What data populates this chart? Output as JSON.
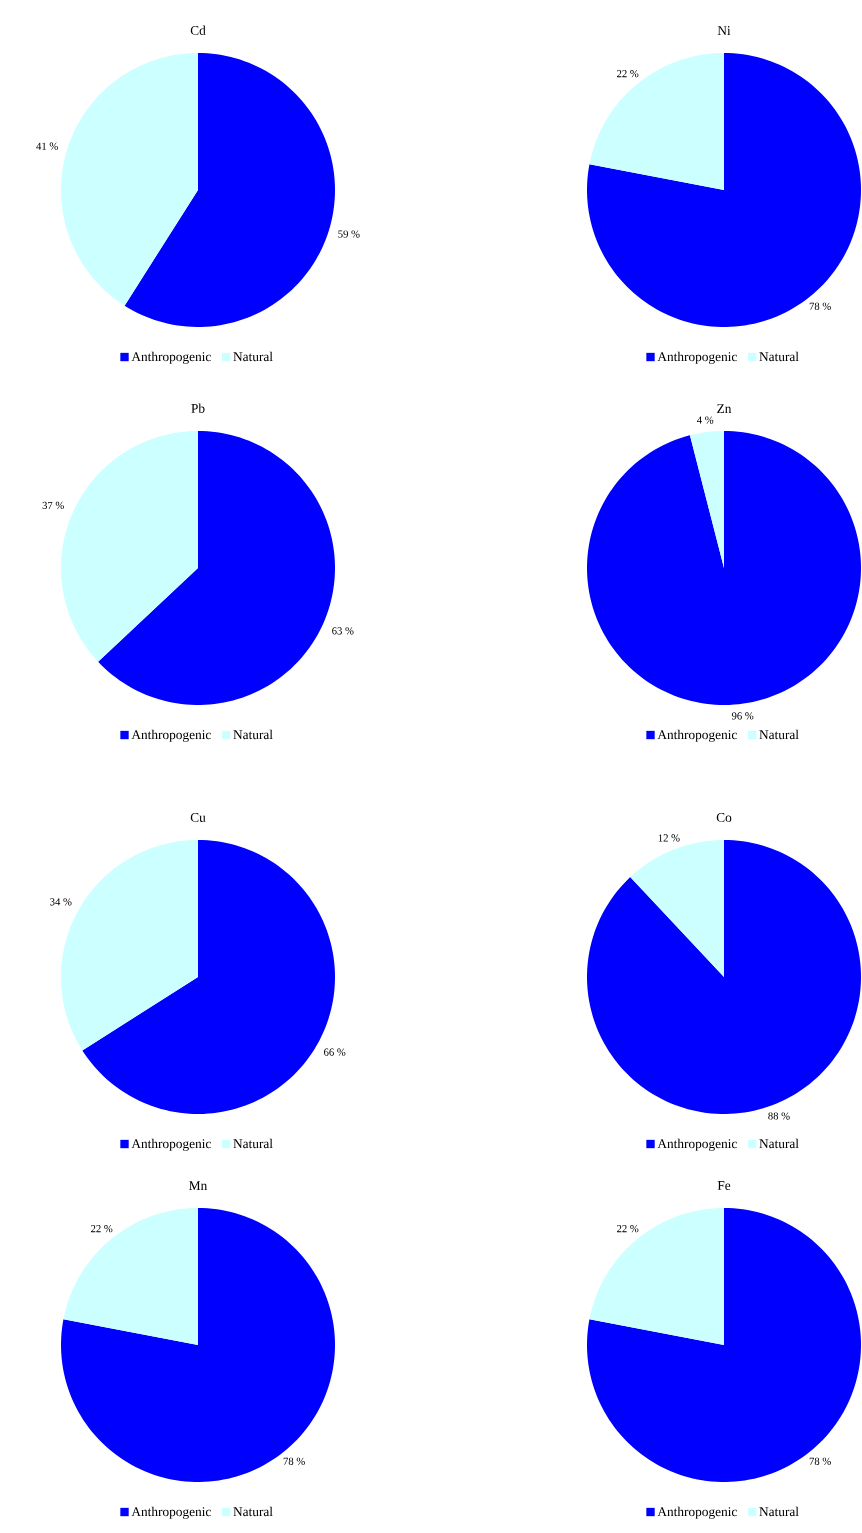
{
  "chart_data": [
    {
      "type": "pie",
      "title": "Cd",
      "categories": [
        "Anthropogenic",
        "Natural"
      ],
      "values": [
        59,
        41
      ],
      "colors": [
        "#0000ff",
        "#ccffff"
      ],
      "value_labels": [
        "59 %",
        "41 %"
      ],
      "legend": "bottom"
    },
    {
      "type": "pie",
      "title": "Ni",
      "categories": [
        "Anthropogenic",
        "Natural"
      ],
      "values": [
        78,
        22
      ],
      "colors": [
        "#0000ff",
        "#ccffff"
      ],
      "value_labels": [
        "78 %",
        "22 %"
      ],
      "legend": "bottom"
    },
    {
      "type": "pie",
      "title": "Pb",
      "categories": [
        "Anthropogenic",
        "Natural"
      ],
      "values": [
        63,
        37
      ],
      "colors": [
        "#0000ff",
        "#ccffff"
      ],
      "value_labels": [
        "63 %",
        "37 %"
      ],
      "legend": "bottom"
    },
    {
      "type": "pie",
      "title": "Zn",
      "categories": [
        "Anthropogenic",
        "Natural"
      ],
      "values": [
        96,
        4
      ],
      "colors": [
        "#0000ff",
        "#ccffff"
      ],
      "value_labels": [
        "96 %",
        "4 %"
      ],
      "legend": "bottom"
    },
    {
      "type": "pie",
      "title": "Cu",
      "categories": [
        "Anthropogenic",
        "Natural"
      ],
      "values": [
        66,
        34
      ],
      "colors": [
        "#0000ff",
        "#ccffff"
      ],
      "value_labels": [
        "66 %",
        "34 %"
      ],
      "legend": "bottom"
    },
    {
      "type": "pie",
      "title": "Co",
      "categories": [
        "Anthropogenic",
        "Natural"
      ],
      "values": [
        88,
        12
      ],
      "colors": [
        "#0000ff",
        "#ccffff"
      ],
      "value_labels": [
        "88 %",
        "12 %"
      ],
      "legend": "bottom"
    },
    {
      "type": "pie",
      "title": "Mn",
      "categories": [
        "Anthropogenic",
        "Natural"
      ],
      "values": [
        78,
        22
      ],
      "colors": [
        "#0000ff",
        "#ccffff"
      ],
      "value_labels": [
        "78 %",
        "22 %"
      ],
      "legend": "bottom"
    },
    {
      "type": "pie",
      "title": "Fe",
      "categories": [
        "Anthropogenic",
        "Natural"
      ],
      "values": [
        78,
        22
      ],
      "colors": [
        "#0000ff",
        "#ccffff"
      ],
      "value_labels": [
        "78 %",
        "22 %"
      ],
      "legend": "bottom"
    }
  ]
}
